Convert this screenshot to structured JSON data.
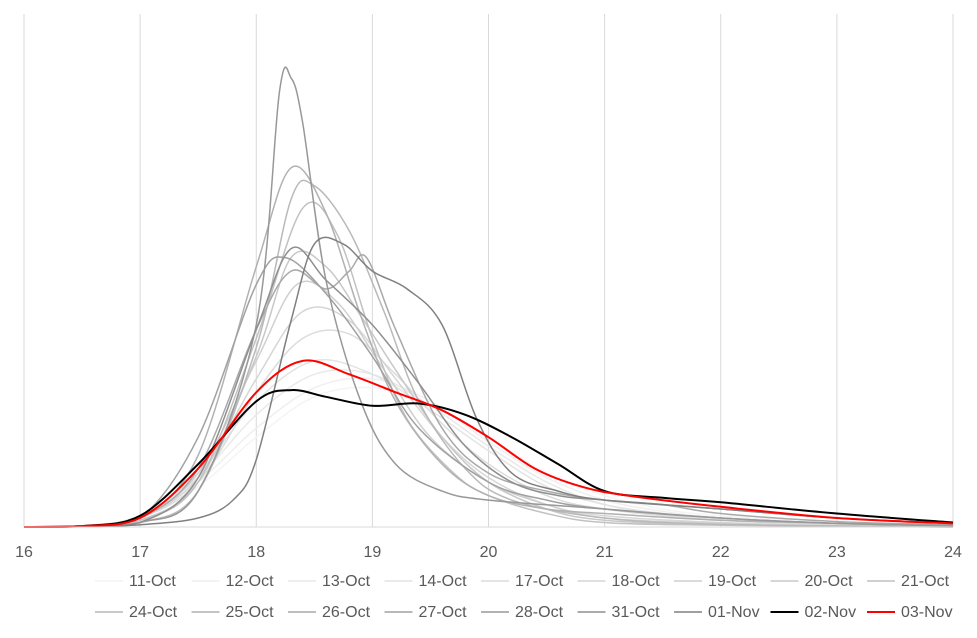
{
  "chart_data": {
    "type": "line",
    "title": "",
    "xlabel": "",
    "ylabel": "",
    "xlim": [
      16,
      24
    ],
    "ylim": [
      0,
      1
    ],
    "x_ticks": [
      "16",
      "17",
      "18",
      "19",
      "20",
      "21",
      "22",
      "23",
      "24"
    ],
    "y_ticks": [],
    "grid": "vertical",
    "legend": "bottom",
    "series": [
      {
        "name": "11-Oct",
        "color": "#f4f4f4",
        "width": 1.5,
        "points": [
          [
            16,
            0
          ],
          [
            16.5,
            0.002
          ],
          [
            17,
            0.02
          ],
          [
            17.5,
            0.09
          ],
          [
            18,
            0.2
          ],
          [
            18.5,
            0.29
          ],
          [
            19,
            0.31
          ],
          [
            19.5,
            0.27
          ],
          [
            20,
            0.2
          ],
          [
            20.5,
            0.12
          ],
          [
            21,
            0.07
          ],
          [
            21.5,
            0.04
          ],
          [
            22,
            0.025
          ],
          [
            23,
            0.01
          ],
          [
            24,
            0.003
          ]
        ]
      },
      {
        "name": "12-Oct",
        "color": "#efefef",
        "width": 1.5,
        "points": [
          [
            16,
            0
          ],
          [
            16.5,
            0.002
          ],
          [
            17,
            0.02
          ],
          [
            17.5,
            0.1
          ],
          [
            18,
            0.22
          ],
          [
            18.5,
            0.31
          ],
          [
            19,
            0.33
          ],
          [
            19.5,
            0.28
          ],
          [
            20,
            0.19
          ],
          [
            20.5,
            0.11
          ],
          [
            21,
            0.06
          ],
          [
            21.5,
            0.035
          ],
          [
            22,
            0.02
          ],
          [
            23,
            0.008
          ],
          [
            24,
            0.002
          ]
        ]
      },
      {
        "name": "13-Oct",
        "color": "#e9e9e9",
        "width": 1.5,
        "points": [
          [
            16,
            0
          ],
          [
            16.5,
            0.002
          ],
          [
            17,
            0.025
          ],
          [
            17.5,
            0.11
          ],
          [
            18,
            0.25
          ],
          [
            18.5,
            0.34
          ],
          [
            19,
            0.34
          ],
          [
            19.5,
            0.27
          ],
          [
            20,
            0.18
          ],
          [
            20.5,
            0.1
          ],
          [
            21,
            0.05
          ],
          [
            21.5,
            0.03
          ],
          [
            22,
            0.018
          ],
          [
            23,
            0.007
          ],
          [
            24,
            0.002
          ]
        ]
      },
      {
        "name": "14-Oct",
        "color": "#e3e3e3",
        "width": 1.5,
        "points": [
          [
            16,
            0
          ],
          [
            16.5,
            0.002
          ],
          [
            17,
            0.025
          ],
          [
            17.5,
            0.12
          ],
          [
            18,
            0.28
          ],
          [
            18.5,
            0.37
          ],
          [
            19,
            0.34
          ],
          [
            19.5,
            0.26
          ],
          [
            20,
            0.17
          ],
          [
            20.5,
            0.09
          ],
          [
            21,
            0.05
          ],
          [
            21.5,
            0.03
          ],
          [
            22,
            0.016
          ],
          [
            23,
            0.006
          ],
          [
            24,
            0.002
          ]
        ]
      },
      {
        "name": "17-Oct",
        "color": "#dcdcdc",
        "width": 1.5,
        "points": [
          [
            16,
            0
          ],
          [
            16.5,
            0.002
          ],
          [
            17,
            0.02
          ],
          [
            17.5,
            0.1
          ],
          [
            18,
            0.3
          ],
          [
            18.4,
            0.42
          ],
          [
            18.8,
            0.43
          ],
          [
            19.2,
            0.34
          ],
          [
            19.6,
            0.23
          ],
          [
            20,
            0.14
          ],
          [
            20.5,
            0.07
          ],
          [
            21,
            0.04
          ],
          [
            22,
            0.015
          ],
          [
            23,
            0.005
          ],
          [
            24,
            0.001
          ]
        ]
      },
      {
        "name": "18-Oct",
        "color": "#d6d6d6",
        "width": 1.5,
        "points": [
          [
            16,
            0
          ],
          [
            16.5,
            0.002
          ],
          [
            17,
            0.02
          ],
          [
            17.5,
            0.11
          ],
          [
            18,
            0.33
          ],
          [
            18.4,
            0.48
          ],
          [
            18.8,
            0.46
          ],
          [
            19.2,
            0.33
          ],
          [
            19.6,
            0.2
          ],
          [
            20,
            0.11
          ],
          [
            20.5,
            0.05
          ],
          [
            21,
            0.025
          ],
          [
            22,
            0.01
          ],
          [
            23,
            0.003
          ],
          [
            24,
            0.001
          ]
        ]
      },
      {
        "name": "19-Oct",
        "color": "#cfcfcf",
        "width": 1.5,
        "points": [
          [
            16,
            0
          ],
          [
            16.5,
            0.002
          ],
          [
            17,
            0.02
          ],
          [
            17.5,
            0.12
          ],
          [
            18,
            0.37
          ],
          [
            18.35,
            0.54
          ],
          [
            18.7,
            0.5
          ],
          [
            19.1,
            0.35
          ],
          [
            19.5,
            0.2
          ],
          [
            20,
            0.1
          ],
          [
            20.5,
            0.05
          ],
          [
            21,
            0.02
          ],
          [
            22,
            0.008
          ],
          [
            23,
            0.003
          ],
          [
            24,
            0
          ]
        ]
      },
      {
        "name": "20-Oct",
        "color": "#c8c8c8",
        "width": 1.5,
        "points": [
          [
            16,
            0
          ],
          [
            16.5,
            0.002
          ],
          [
            17,
            0.015
          ],
          [
            17.5,
            0.1
          ],
          [
            18,
            0.38
          ],
          [
            18.3,
            0.6
          ],
          [
            18.6,
            0.58
          ],
          [
            18.9,
            0.47
          ],
          [
            19.2,
            0.35
          ],
          [
            19.6,
            0.2
          ],
          [
            20,
            0.1
          ],
          [
            20.5,
            0.04
          ],
          [
            21,
            0.015
          ],
          [
            22,
            0.005
          ],
          [
            24,
            0
          ]
        ]
      },
      {
        "name": "21-Oct",
        "color": "#c1c1c1",
        "width": 1.5,
        "points": [
          [
            16,
            0
          ],
          [
            16.5,
            0.001
          ],
          [
            17,
            0.015
          ],
          [
            17.5,
            0.1
          ],
          [
            18,
            0.42
          ],
          [
            18.4,
            0.71
          ],
          [
            18.7,
            0.65
          ],
          [
            19,
            0.42
          ],
          [
            19.3,
            0.24
          ],
          [
            19.7,
            0.12
          ],
          [
            20,
            0.07
          ],
          [
            20.5,
            0.03
          ],
          [
            21,
            0.01
          ],
          [
            22,
            0.004
          ],
          [
            24,
            0
          ]
        ]
      },
      {
        "name": "24-Oct",
        "color": "#b9b9b9",
        "width": 1.5,
        "points": [
          [
            16,
            0
          ],
          [
            16.5,
            0.001
          ],
          [
            17,
            0.01
          ],
          [
            17.5,
            0.08
          ],
          [
            18,
            0.4
          ],
          [
            18.3,
            0.73
          ],
          [
            18.5,
            0.76
          ],
          [
            18.8,
            0.66
          ],
          [
            19.1,
            0.48
          ],
          [
            19.4,
            0.28
          ],
          [
            19.8,
            0.13
          ],
          [
            20.2,
            0.06
          ],
          [
            21,
            0.02
          ],
          [
            22,
            0.006
          ],
          [
            24,
            0
          ]
        ]
      },
      {
        "name": "25-Oct",
        "color": "#b1b1b1",
        "width": 1.5,
        "points": [
          [
            16,
            0
          ],
          [
            16.5,
            0.002
          ],
          [
            17,
            0.02
          ],
          [
            17.5,
            0.16
          ],
          [
            18,
            0.58
          ],
          [
            18.3,
            0.8
          ],
          [
            18.6,
            0.7
          ],
          [
            18.9,
            0.47
          ],
          [
            19.2,
            0.28
          ],
          [
            19.6,
            0.14
          ],
          [
            20,
            0.07
          ],
          [
            20.5,
            0.04
          ],
          [
            21,
            0.03
          ],
          [
            22,
            0.015
          ],
          [
            23,
            0.008
          ],
          [
            24,
            0.004
          ]
        ]
      },
      {
        "name": "26-Oct",
        "color": "#a9a9a9",
        "width": 1.5,
        "points": [
          [
            16,
            0
          ],
          [
            16.5,
            0.001
          ],
          [
            17,
            0.02
          ],
          [
            17.5,
            0.13
          ],
          [
            18,
            0.44
          ],
          [
            18.3,
            0.57
          ],
          [
            18.6,
            0.53
          ],
          [
            18.8,
            0.57
          ],
          [
            18.95,
            0.6
          ],
          [
            19.2,
            0.44
          ],
          [
            19.6,
            0.22
          ],
          [
            20,
            0.12
          ],
          [
            20.5,
            0.08
          ],
          [
            21,
            0.06
          ],
          [
            21.5,
            0.05
          ],
          [
            22,
            0.03
          ],
          [
            23,
            0.012
          ],
          [
            24,
            0.005
          ]
        ]
      },
      {
        "name": "27-Oct",
        "color": "#a1a1a1",
        "width": 1.5,
        "points": [
          [
            16,
            0
          ],
          [
            16.5,
            0.002
          ],
          [
            17,
            0.02
          ],
          [
            17.5,
            0.2
          ],
          [
            18,
            0.54
          ],
          [
            18.25,
            0.6
          ],
          [
            18.6,
            0.52
          ],
          [
            19,
            0.38
          ],
          [
            19.4,
            0.22
          ],
          [
            20,
            0.1
          ],
          [
            20.5,
            0.06
          ],
          [
            21,
            0.04
          ],
          [
            22,
            0.02
          ],
          [
            23,
            0.008
          ],
          [
            24,
            0.003
          ]
        ]
      },
      {
        "name": "28-Oct",
        "color": "#989898",
        "width": 1.5,
        "points": [
          [
            16,
            0
          ],
          [
            16.5,
            0.001
          ],
          [
            17,
            0.01
          ],
          [
            17.5,
            0.08
          ],
          [
            18,
            0.45
          ],
          [
            18.2,
            0.97
          ],
          [
            18.3,
            1.0
          ],
          [
            18.4,
            0.9
          ],
          [
            18.6,
            0.55
          ],
          [
            18.9,
            0.28
          ],
          [
            19.2,
            0.14
          ],
          [
            19.6,
            0.08
          ],
          [
            20,
            0.06
          ],
          [
            21,
            0.04
          ],
          [
            22,
            0.02
          ],
          [
            23,
            0.008
          ],
          [
            24,
            0.003
          ]
        ]
      },
      {
        "name": "31-Oct",
        "color": "#8f8f8f",
        "width": 1.5,
        "points": [
          [
            16,
            0
          ],
          [
            16.5,
            0.001
          ],
          [
            17,
            0.01
          ],
          [
            17.5,
            0.11
          ],
          [
            18,
            0.44
          ],
          [
            18.3,
            0.62
          ],
          [
            18.6,
            0.55
          ],
          [
            19,
            0.45
          ],
          [
            19.4,
            0.32
          ],
          [
            19.8,
            0.18
          ],
          [
            20.2,
            0.1
          ],
          [
            20.6,
            0.07
          ],
          [
            21,
            0.06
          ],
          [
            22,
            0.04
          ],
          [
            23,
            0.02
          ],
          [
            24,
            0.008
          ]
        ]
      },
      {
        "name": "01-Nov",
        "color": "#808080",
        "width": 1.5,
        "points": [
          [
            16,
            0
          ],
          [
            16.5,
            0.001
          ],
          [
            17,
            0.005
          ],
          [
            17.5,
            0.02
          ],
          [
            17.8,
            0.06
          ],
          [
            18,
            0.15
          ],
          [
            18.3,
            0.46
          ],
          [
            18.5,
            0.63
          ],
          [
            18.75,
            0.63
          ],
          [
            19,
            0.57
          ],
          [
            19.3,
            0.53
          ],
          [
            19.6,
            0.45
          ],
          [
            19.9,
            0.24
          ],
          [
            20.2,
            0.12
          ],
          [
            20.6,
            0.08
          ],
          [
            21,
            0.06
          ],
          [
            22,
            0.04
          ],
          [
            23,
            0.02
          ],
          [
            24,
            0.008
          ]
        ]
      },
      {
        "name": "02-Nov",
        "color": "#000000",
        "width": 2,
        "points": [
          [
            16,
            0
          ],
          [
            16.5,
            0.002
          ],
          [
            17,
            0.025
          ],
          [
            17.5,
            0.14
          ],
          [
            18,
            0.28
          ],
          [
            18.3,
            0.305
          ],
          [
            18.6,
            0.29
          ],
          [
            19,
            0.27
          ],
          [
            19.4,
            0.275
          ],
          [
            19.8,
            0.25
          ],
          [
            20.2,
            0.2
          ],
          [
            20.6,
            0.14
          ],
          [
            21,
            0.08
          ],
          [
            21.5,
            0.065
          ],
          [
            22,
            0.055
          ],
          [
            23,
            0.03
          ],
          [
            24,
            0.01
          ]
        ]
      },
      {
        "name": "03-Nov",
        "color": "#ff0000",
        "width": 2,
        "points": [
          [
            16,
            0
          ],
          [
            16.5,
            0.002
          ],
          [
            17,
            0.02
          ],
          [
            17.5,
            0.13
          ],
          [
            18,
            0.3
          ],
          [
            18.4,
            0.37
          ],
          [
            18.8,
            0.34
          ],
          [
            19.2,
            0.3
          ],
          [
            19.6,
            0.26
          ],
          [
            20,
            0.2
          ],
          [
            20.4,
            0.13
          ],
          [
            20.8,
            0.09
          ],
          [
            21.2,
            0.07
          ],
          [
            22,
            0.045
          ],
          [
            23,
            0.02
          ],
          [
            24,
            0.008
          ]
        ]
      }
    ]
  }
}
